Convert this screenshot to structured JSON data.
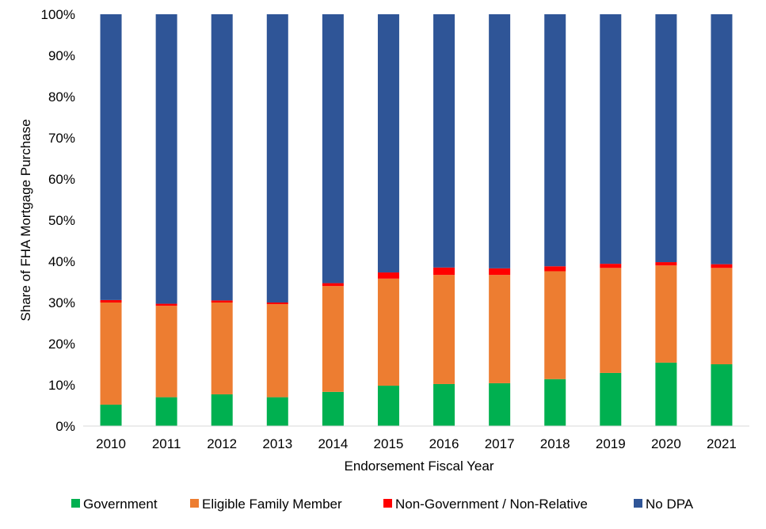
{
  "chart_data": {
    "type": "bar",
    "stacked": true,
    "title": "",
    "xlabel": "Endorsement Fiscal Year",
    "ylabel": "Share of FHA Mortgage Purchase",
    "ylim": [
      0,
      100
    ],
    "y_ticks": [
      "0%",
      "10%",
      "20%",
      "30%",
      "40%",
      "50%",
      "60%",
      "70%",
      "80%",
      "90%",
      "100%"
    ],
    "grid": false,
    "legend_position": "bottom",
    "categories": [
      "2010",
      "2011",
      "2012",
      "2013",
      "2014",
      "2015",
      "2016",
      "2017",
      "2018",
      "2019",
      "2020",
      "2021"
    ],
    "series": [
      {
        "name": "Government",
        "color": "#00B050",
        "values": [
          5.2,
          7.0,
          7.7,
          7.0,
          8.3,
          9.8,
          10.2,
          10.4,
          11.4,
          12.9,
          15.4,
          15.0
        ]
      },
      {
        "name": "Eligible Family Member",
        "color": "#ED7D31",
        "values": [
          24.8,
          22.2,
          22.3,
          22.6,
          25.7,
          26.0,
          26.5,
          26.3,
          26.2,
          25.5,
          23.6,
          23.4
        ]
      },
      {
        "name": "Non-Government / Non-Relative",
        "color": "#FF0000",
        "values": [
          0.6,
          0.5,
          0.5,
          0.4,
          0.7,
          1.5,
          1.8,
          1.6,
          1.2,
          1.0,
          0.8,
          0.9
        ]
      },
      {
        "name": "No DPA",
        "color": "#2F5597",
        "values": [
          69.4,
          70.3,
          69.5,
          70.0,
          65.3,
          62.7,
          61.5,
          61.7,
          61.2,
          60.6,
          60.2,
          60.7
        ]
      }
    ]
  }
}
